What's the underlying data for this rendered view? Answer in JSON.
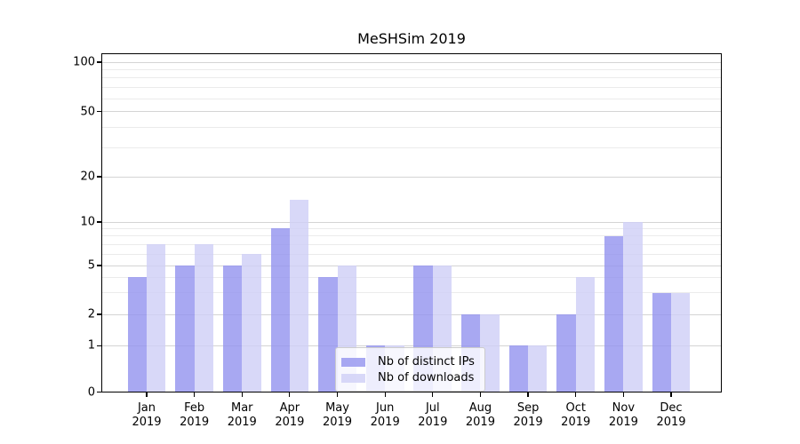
{
  "chart_data": {
    "type": "bar",
    "title": "MeSHSim 2019",
    "categories": [
      {
        "month": "Jan",
        "year": "2019"
      },
      {
        "month": "Feb",
        "year": "2019"
      },
      {
        "month": "Mar",
        "year": "2019"
      },
      {
        "month": "Apr",
        "year": "2019"
      },
      {
        "month": "May",
        "year": "2019"
      },
      {
        "month": "Jun",
        "year": "2019"
      },
      {
        "month": "Jul",
        "year": "2019"
      },
      {
        "month": "Aug",
        "year": "2019"
      },
      {
        "month": "Sep",
        "year": "2019"
      },
      {
        "month": "Oct",
        "year": "2019"
      },
      {
        "month": "Nov",
        "year": "2019"
      },
      {
        "month": "Dec",
        "year": "2019"
      }
    ],
    "series": [
      {
        "name": "Nb of distinct IPs",
        "color": "rgba(146,146,239,0.8)",
        "values": [
          4,
          5,
          5,
          9,
          4,
          1,
          5,
          2,
          1,
          2,
          8,
          3
        ]
      },
      {
        "name": "Nb of downloads",
        "color": "rgba(206,206,246,0.8)",
        "values": [
          7,
          7,
          6,
          14,
          5,
          1,
          5,
          2,
          1,
          4,
          10,
          3
        ]
      }
    ],
    "y_axis": {
      "scale": "log-like",
      "tick_labels": [
        "100",
        "50",
        "20",
        "10",
        "5",
        "2",
        "1",
        "0"
      ],
      "ticks": [
        100,
        50,
        20,
        10,
        5,
        2,
        1,
        0
      ],
      "minor_gridlines": [
        3,
        4,
        6,
        7,
        8,
        9,
        30,
        40,
        60,
        70,
        80,
        90
      ]
    },
    "grid": true,
    "legend_position": "inside-bottom-center"
  },
  "colors": {
    "major_grid": "#d4d4d4",
    "minor_grid": "#ebebeb",
    "axis": "#000000",
    "legend_border": "#cccccc"
  }
}
